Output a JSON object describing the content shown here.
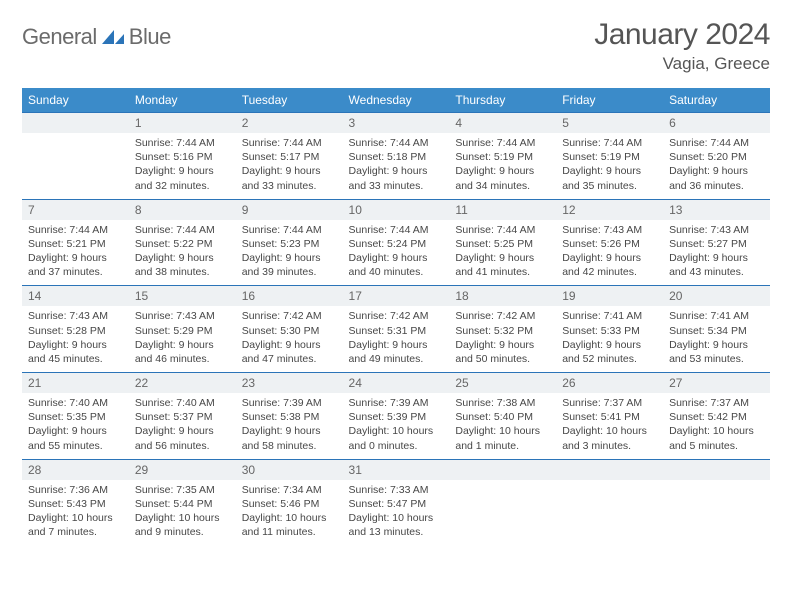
{
  "brand": {
    "word1": "General",
    "word2": "Blue"
  },
  "title": "January 2024",
  "location": "Vagia, Greece",
  "colors": {
    "header_bg": "#3b8bc9",
    "header_text": "#ffffff",
    "daynum_bg": "#eef1f3",
    "daynum_border": "#2b74b8",
    "body_text": "#474747",
    "title_text": "#555555",
    "logo_gray": "#6b6b6b",
    "logo_blue": "#2b74b8"
  },
  "day_headers": [
    "Sunday",
    "Monday",
    "Tuesday",
    "Wednesday",
    "Thursday",
    "Friday",
    "Saturday"
  ],
  "weeks": [
    [
      null,
      {
        "n": "1",
        "sr": "7:44 AM",
        "ss": "5:16 PM",
        "dl": "9 hours and 32 minutes."
      },
      {
        "n": "2",
        "sr": "7:44 AM",
        "ss": "5:17 PM",
        "dl": "9 hours and 33 minutes."
      },
      {
        "n": "3",
        "sr": "7:44 AM",
        "ss": "5:18 PM",
        "dl": "9 hours and 33 minutes."
      },
      {
        "n": "4",
        "sr": "7:44 AM",
        "ss": "5:19 PM",
        "dl": "9 hours and 34 minutes."
      },
      {
        "n": "5",
        "sr": "7:44 AM",
        "ss": "5:19 PM",
        "dl": "9 hours and 35 minutes."
      },
      {
        "n": "6",
        "sr": "7:44 AM",
        "ss": "5:20 PM",
        "dl": "9 hours and 36 minutes."
      }
    ],
    [
      {
        "n": "7",
        "sr": "7:44 AM",
        "ss": "5:21 PM",
        "dl": "9 hours and 37 minutes."
      },
      {
        "n": "8",
        "sr": "7:44 AM",
        "ss": "5:22 PM",
        "dl": "9 hours and 38 minutes."
      },
      {
        "n": "9",
        "sr": "7:44 AM",
        "ss": "5:23 PM",
        "dl": "9 hours and 39 minutes."
      },
      {
        "n": "10",
        "sr": "7:44 AM",
        "ss": "5:24 PM",
        "dl": "9 hours and 40 minutes."
      },
      {
        "n": "11",
        "sr": "7:44 AM",
        "ss": "5:25 PM",
        "dl": "9 hours and 41 minutes."
      },
      {
        "n": "12",
        "sr": "7:43 AM",
        "ss": "5:26 PM",
        "dl": "9 hours and 42 minutes."
      },
      {
        "n": "13",
        "sr": "7:43 AM",
        "ss": "5:27 PM",
        "dl": "9 hours and 43 minutes."
      }
    ],
    [
      {
        "n": "14",
        "sr": "7:43 AM",
        "ss": "5:28 PM",
        "dl": "9 hours and 45 minutes."
      },
      {
        "n": "15",
        "sr": "7:43 AM",
        "ss": "5:29 PM",
        "dl": "9 hours and 46 minutes."
      },
      {
        "n": "16",
        "sr": "7:42 AM",
        "ss": "5:30 PM",
        "dl": "9 hours and 47 minutes."
      },
      {
        "n": "17",
        "sr": "7:42 AM",
        "ss": "5:31 PM",
        "dl": "9 hours and 49 minutes."
      },
      {
        "n": "18",
        "sr": "7:42 AM",
        "ss": "5:32 PM",
        "dl": "9 hours and 50 minutes."
      },
      {
        "n": "19",
        "sr": "7:41 AM",
        "ss": "5:33 PM",
        "dl": "9 hours and 52 minutes."
      },
      {
        "n": "20",
        "sr": "7:41 AM",
        "ss": "5:34 PM",
        "dl": "9 hours and 53 minutes."
      }
    ],
    [
      {
        "n": "21",
        "sr": "7:40 AM",
        "ss": "5:35 PM",
        "dl": "9 hours and 55 minutes."
      },
      {
        "n": "22",
        "sr": "7:40 AM",
        "ss": "5:37 PM",
        "dl": "9 hours and 56 minutes."
      },
      {
        "n": "23",
        "sr": "7:39 AM",
        "ss": "5:38 PM",
        "dl": "9 hours and 58 minutes."
      },
      {
        "n": "24",
        "sr": "7:39 AM",
        "ss": "5:39 PM",
        "dl": "10 hours and 0 minutes."
      },
      {
        "n": "25",
        "sr": "7:38 AM",
        "ss": "5:40 PM",
        "dl": "10 hours and 1 minute."
      },
      {
        "n": "26",
        "sr": "7:37 AM",
        "ss": "5:41 PM",
        "dl": "10 hours and 3 minutes."
      },
      {
        "n": "27",
        "sr": "7:37 AM",
        "ss": "5:42 PM",
        "dl": "10 hours and 5 minutes."
      }
    ],
    [
      {
        "n": "28",
        "sr": "7:36 AM",
        "ss": "5:43 PM",
        "dl": "10 hours and 7 minutes."
      },
      {
        "n": "29",
        "sr": "7:35 AM",
        "ss": "5:44 PM",
        "dl": "10 hours and 9 minutes."
      },
      {
        "n": "30",
        "sr": "7:34 AM",
        "ss": "5:46 PM",
        "dl": "10 hours and 11 minutes."
      },
      {
        "n": "31",
        "sr": "7:33 AM",
        "ss": "5:47 PM",
        "dl": "10 hours and 13 minutes."
      },
      null,
      null,
      null
    ]
  ],
  "labels": {
    "sunrise": "Sunrise: ",
    "sunset": "Sunset: ",
    "daylight": "Daylight: "
  }
}
